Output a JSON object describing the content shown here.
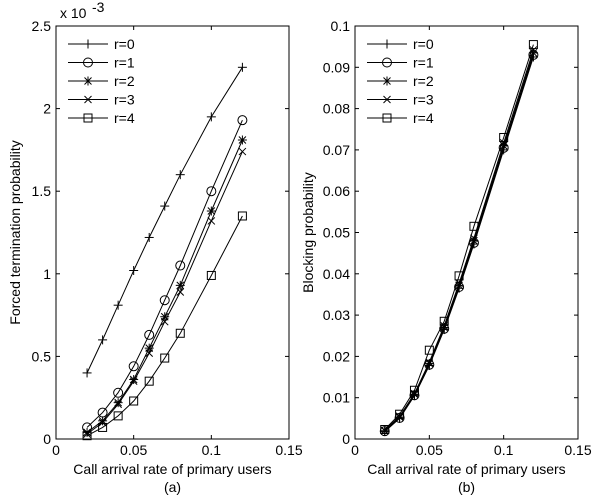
{
  "chart_data": [
    {
      "type": "line",
      "panel": "(a)",
      "xlabel": "Call arrival rate of primary users",
      "ylabel": "Forced termination probability",
      "exponent_label": "x 10",
      "exponent_power": "-3",
      "xlim": [
        0,
        0.15
      ],
      "ylim": [
        0,
        2.5
      ],
      "xticks": [
        "0",
        "0.05",
        "0.1",
        "0.15"
      ],
      "yticks": [
        "0",
        "0.5",
        "1",
        "1.5",
        "2",
        "2.5"
      ],
      "legend_position": "top-left",
      "series": [
        {
          "name": "r=0",
          "marker": "plus",
          "x": [
            0.02,
            0.03,
            0.04,
            0.05,
            0.06,
            0.07,
            0.08,
            0.1,
            0.12
          ],
          "y": [
            0.4,
            0.6,
            0.81,
            1.02,
            1.22,
            1.41,
            1.6,
            1.95,
            2.25
          ]
        },
        {
          "name": "r=1",
          "marker": "circle",
          "x": [
            0.02,
            0.03,
            0.04,
            0.05,
            0.06,
            0.07,
            0.08,
            0.1,
            0.12
          ],
          "y": [
            0.07,
            0.16,
            0.28,
            0.44,
            0.63,
            0.84,
            1.05,
            1.5,
            1.93
          ]
        },
        {
          "name": "r=2",
          "marker": "star",
          "x": [
            0.02,
            0.03,
            0.04,
            0.05,
            0.06,
            0.07,
            0.08,
            0.1,
            0.12
          ],
          "y": [
            0.04,
            0.11,
            0.22,
            0.36,
            0.55,
            0.74,
            0.93,
            1.38,
            1.81
          ]
        },
        {
          "name": "r=3",
          "marker": "x",
          "x": [
            0.02,
            0.03,
            0.04,
            0.05,
            0.06,
            0.07,
            0.08,
            0.1,
            0.12
          ],
          "y": [
            0.03,
            0.1,
            0.21,
            0.35,
            0.52,
            0.71,
            0.89,
            1.32,
            1.74
          ]
        },
        {
          "name": "r=4",
          "marker": "square",
          "x": [
            0.02,
            0.03,
            0.04,
            0.05,
            0.06,
            0.07,
            0.08,
            0.1,
            0.12
          ],
          "y": [
            0.02,
            0.07,
            0.14,
            0.23,
            0.35,
            0.49,
            0.64,
            0.99,
            1.35
          ]
        }
      ]
    },
    {
      "type": "line",
      "panel": "(b)",
      "xlabel": "Call arrival rate of primary users",
      "ylabel": "Blocking probability",
      "xlim": [
        0,
        0.15
      ],
      "ylim": [
        0,
        0.1
      ],
      "xticks": [
        "0",
        "0.05",
        "0.1",
        "0.15"
      ],
      "yticks": [
        "0",
        "0.01",
        "0.02",
        "0.03",
        "0.04",
        "0.05",
        "0.06",
        "0.07",
        "0.08",
        "0.09",
        "0.1"
      ],
      "legend_position": "top-left",
      "series": [
        {
          "name": "r=0",
          "marker": "plus",
          "x": [
            0.02,
            0.03,
            0.04,
            0.05,
            0.06,
            0.07,
            0.08,
            0.1,
            0.12
          ],
          "y": [
            0.0018,
            0.005,
            0.0105,
            0.0178,
            0.0265,
            0.0365,
            0.0472,
            0.07,
            0.0925
          ]
        },
        {
          "name": "r=1",
          "marker": "circle",
          "x": [
            0.02,
            0.03,
            0.04,
            0.05,
            0.06,
            0.07,
            0.08,
            0.1,
            0.12
          ],
          "y": [
            0.0019,
            0.0051,
            0.0106,
            0.018,
            0.0267,
            0.0368,
            0.0475,
            0.0705,
            0.093
          ]
        },
        {
          "name": "r=2",
          "marker": "star",
          "x": [
            0.02,
            0.03,
            0.04,
            0.05,
            0.06,
            0.07,
            0.08,
            0.1,
            0.12
          ],
          "y": [
            0.002,
            0.0053,
            0.0108,
            0.0183,
            0.027,
            0.0372,
            0.048,
            0.071,
            0.0935
          ]
        },
        {
          "name": "r=3",
          "marker": "x",
          "x": [
            0.02,
            0.03,
            0.04,
            0.05,
            0.06,
            0.07,
            0.08,
            0.1,
            0.12
          ],
          "y": [
            0.0021,
            0.0055,
            0.011,
            0.0186,
            0.0274,
            0.0377,
            0.0486,
            0.0717,
            0.0942
          ]
        },
        {
          "name": "r=4",
          "marker": "square",
          "x": [
            0.02,
            0.03,
            0.04,
            0.05,
            0.06,
            0.07,
            0.08,
            0.1,
            0.12
          ],
          "y": [
            0.0023,
            0.006,
            0.0118,
            0.0215,
            0.0285,
            0.0395,
            0.0515,
            0.073,
            0.0955
          ]
        }
      ]
    }
  ]
}
